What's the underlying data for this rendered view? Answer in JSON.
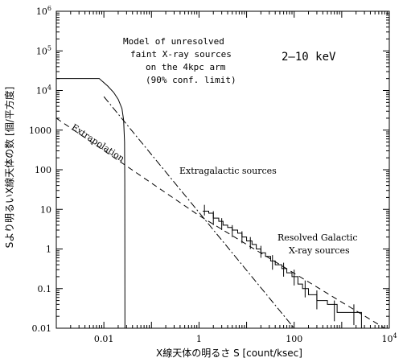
{
  "chart_data": {
    "type": "line",
    "energy_band": "2–10 keV",
    "xlabel": "X線天体の明るさ S [count/ksec]",
    "ylabel": "Sより明るいX線天体の数 [個/平方度]",
    "x_scale": "log",
    "y_scale": "log",
    "xlim": [
      0.001,
      10000
    ],
    "ylim": [
      0.01,
      1000000
    ],
    "x_ticks": [
      {
        "value": 0.01,
        "label": "0.01"
      },
      {
        "value": 1,
        "label": "1"
      },
      {
        "value": 100,
        "label": "100"
      },
      {
        "value": 10000,
        "label": "10",
        "sup": "4"
      }
    ],
    "y_ticks": [
      {
        "value": 0.01,
        "label": "0.01"
      },
      {
        "value": 0.1,
        "label": "0.1"
      },
      {
        "value": 1,
        "label": "1"
      },
      {
        "value": 10,
        "label": "10"
      },
      {
        "value": 100,
        "label": "100"
      },
      {
        "value": 1000,
        "label": "1000"
      },
      {
        "value": 10000,
        "label": "10",
        "sup": "4"
      },
      {
        "value": 100000,
        "label": "10",
        "sup": "5"
      },
      {
        "value": 1000000,
        "label": "10",
        "sup": "6"
      }
    ],
    "annotations": {
      "model": [
        "Model of unresolved",
        "faint X-ray sources",
        "on the 4kpc arm",
        "(90% conf. limit)"
      ],
      "extrapolation": "Extrapolation",
      "extragalactic": "Extragalactic sources",
      "resolved": [
        "Resolved Galactic",
        "X-ray sources"
      ]
    },
    "series": [
      {
        "key": "model",
        "style": "solid",
        "points": [
          [
            0.001,
            20000
          ],
          [
            0.008,
            20000
          ],
          [
            0.012,
            13000
          ],
          [
            0.016,
            9000
          ],
          [
            0.02,
            6000
          ],
          [
            0.024,
            3500
          ],
          [
            0.026,
            1800
          ],
          [
            0.0272,
            500
          ],
          [
            0.0275,
            50
          ],
          [
            0.0276,
            1
          ],
          [
            0.0277,
            0.01
          ]
        ]
      },
      {
        "key": "extrapolation",
        "style": "dashed",
        "points": [
          [
            0.001,
            2000
          ],
          [
            1,
            7
          ],
          [
            8000,
            0.01
          ]
        ]
      },
      {
        "key": "extragalactic",
        "style": "dashdot",
        "points": [
          [
            0.01,
            7000
          ],
          [
            100,
            0.01
          ]
        ]
      },
      {
        "key": "resolved",
        "style": "step",
        "points": [
          [
            1.2,
            9
          ],
          [
            1.6,
            8
          ],
          [
            2,
            6
          ],
          [
            2.6,
            5
          ],
          [
            3.2,
            4
          ],
          [
            4,
            3.5
          ],
          [
            5,
            3
          ],
          [
            6.5,
            2.5
          ],
          [
            8,
            2
          ],
          [
            10,
            1.6
          ],
          [
            13,
            1.3
          ],
          [
            16,
            1
          ],
          [
            20,
            0.8
          ],
          [
            25,
            0.65
          ],
          [
            32,
            0.5
          ],
          [
            40,
            0.4
          ],
          [
            55,
            0.32
          ],
          [
            70,
            0.25
          ],
          [
            90,
            0.2
          ],
          [
            120,
            0.13
          ],
          [
            150,
            0.1
          ],
          [
            200,
            0.07
          ],
          [
            300,
            0.05
          ],
          [
            500,
            0.04
          ],
          [
            800,
            0.025
          ],
          [
            2500,
            0.025
          ],
          [
            2600,
            0.01
          ]
        ],
        "error_bars": [
          [
            1.3,
            7,
            13
          ],
          [
            2,
            4,
            9
          ],
          [
            3,
            3,
            6
          ],
          [
            5,
            2,
            4
          ],
          [
            8,
            1.4,
            2.8
          ],
          [
            12,
            1,
            2
          ],
          [
            20,
            0.6,
            1.2
          ],
          [
            35,
            0.3,
            0.7
          ],
          [
            60,
            0.2,
            0.45
          ],
          [
            100,
            0.12,
            0.3
          ],
          [
            170,
            0.06,
            0.16
          ],
          [
            300,
            0.03,
            0.09
          ],
          [
            700,
            0.015,
            0.05
          ],
          [
            1800,
            0.012,
            0.04
          ]
        ]
      }
    ]
  }
}
